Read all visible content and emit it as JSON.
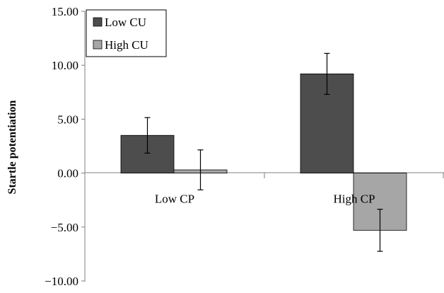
{
  "chart_data": {
    "type": "bar",
    "title": "",
    "xlabel": "",
    "ylabel": "Startle potentiation",
    "ylim": [
      -10,
      15
    ],
    "yticks": [
      15,
      10,
      5,
      0,
      -5,
      -10
    ],
    "ytick_labels": [
      "15.00",
      "10.00",
      "5.00",
      "0.00",
      "-5.00",
      "-10.00"
    ],
    "categories": [
      "Low CP",
      "High CP"
    ],
    "series": [
      {
        "name": "Low CU",
        "color": "#4d4d4d",
        "values": [
          3.5,
          9.2
        ],
        "error": [
          1.65,
          1.9
        ]
      },
      {
        "name": "High CU",
        "color": "#a6a6a6",
        "values": [
          0.3,
          -5.3
        ],
        "error": [
          1.85,
          1.95
        ]
      }
    ],
    "legend": {
      "position": "top-left",
      "entries": [
        "Low CU",
        "High CU"
      ]
    },
    "grid": false
  }
}
